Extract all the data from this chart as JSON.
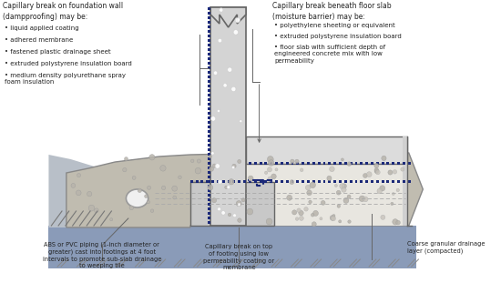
{
  "fig_width": 5.5,
  "fig_height": 3.33,
  "dpi": 100,
  "bg_color": "#ffffff",
  "colors": {
    "concrete_wall": "#d4d4d4",
    "concrete_footing": "#c8c8c8",
    "concrete_slab": "#dcdcdc",
    "gravel_footing": "#c0bcb0",
    "gravel_right": "#c8c4b8",
    "soil_left": "#b8bfc8",
    "soil_bottom": "#8a9bb8",
    "damp_line": "#1a2878",
    "text_color": "#222222",
    "arrow_color": "#666666",
    "dashed_line": "#aaaaaa",
    "outline": "#666666",
    "pipe_fill": "#f0f0f0",
    "hatch": "#888888",
    "gravel_dot": "#aaaaaa",
    "wall_dot": "#cccccc"
  },
  "left_text_title": "Capillary break on foundation wall\n(dampproofing) may be:",
  "left_bullets": [
    "liquid applied coating",
    "adhered membrane",
    "fastened plastic drainage sheet",
    "extruded polystyrene insulation board",
    "medium density polyurethane spray\nfoam insulation"
  ],
  "right_text_title": "Capillary break beneath floor slab\n(moisture barrier) may be:",
  "right_bullets": [
    "polyethylene sheeting or equivalent",
    "extruded polystyrene insulation board",
    "floor slab with sufficient depth of\nengineered concrete mix with low\npermeability"
  ],
  "bottom_left_text": "ABS or PVC piping (1-inch diameter or\ngreater) cast into footings at 4 foot\nintervals to promote sub-slab drainage\nto weeping tile",
  "bottom_center_text": "Capillary break on top\nof footing using low\npermeability coating or\nmembrane",
  "bottom_right_text": "Coarse granular drainage\nlayer (compacted)"
}
